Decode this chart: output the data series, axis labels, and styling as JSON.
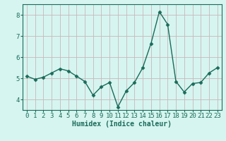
{
  "x": [
    0,
    1,
    2,
    3,
    4,
    5,
    6,
    7,
    8,
    9,
    10,
    11,
    12,
    13,
    14,
    15,
    16,
    17,
    18,
    19,
    20,
    21,
    22,
    23
  ],
  "y": [
    5.1,
    4.95,
    5.05,
    5.25,
    5.45,
    5.35,
    5.1,
    4.85,
    4.2,
    4.6,
    4.8,
    3.65,
    4.4,
    4.8,
    5.5,
    6.65,
    8.15,
    7.55,
    4.85,
    4.35,
    4.75,
    4.8,
    5.25,
    5.5
  ],
  "line_color": "#1a6b5a",
  "marker": "D",
  "markersize": 2.5,
  "linewidth": 1.0,
  "bg_color": "#d6f5f0",
  "grid_color": "#c8b8b8",
  "xlabel": "Humidex (Indice chaleur)",
  "xlabel_fontsize": 7,
  "tick_fontsize": 6.5,
  "ylim": [
    3.5,
    8.5
  ],
  "xlim": [
    -0.5,
    23.5
  ],
  "yticks": [
    4,
    5,
    6,
    7,
    8
  ],
  "xticks": [
    0,
    1,
    2,
    3,
    4,
    5,
    6,
    7,
    8,
    9,
    10,
    11,
    12,
    13,
    14,
    15,
    16,
    17,
    18,
    19,
    20,
    21,
    22,
    23
  ]
}
